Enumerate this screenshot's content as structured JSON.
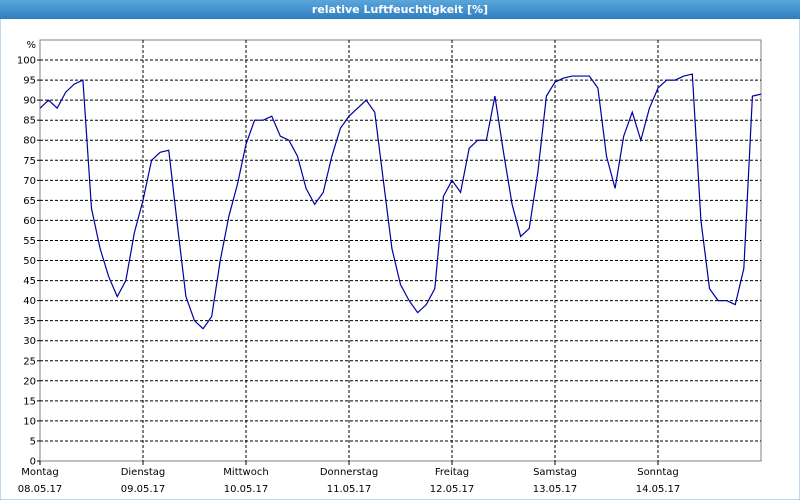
{
  "chart_data": {
    "type": "line",
    "title": "relative Luftfeuchtigkeit [%]",
    "y_label": "%",
    "x": [
      0,
      2,
      4,
      6,
      8,
      10,
      12,
      14,
      16,
      18,
      20,
      22,
      24,
      26,
      28,
      30,
      32,
      34,
      36,
      38,
      40,
      42,
      44,
      46,
      48,
      50,
      52,
      54,
      56,
      58,
      60,
      62,
      64,
      66,
      68,
      70,
      72,
      74,
      76,
      78,
      80,
      82,
      84,
      86,
      88,
      90,
      92,
      94,
      96,
      98,
      100,
      102,
      104,
      106,
      108,
      110,
      112,
      114,
      116,
      118,
      120,
      122,
      124,
      126,
      128,
      130,
      132,
      134,
      136,
      138,
      140,
      142,
      144,
      146,
      148,
      150,
      152,
      154,
      156,
      158,
      160,
      162,
      164,
      166,
      168
    ],
    "series": [
      {
        "name": "relative Luftfeuchtigkeit",
        "color": "#0000a0",
        "values": [
          88,
          90,
          88,
          92,
          94,
          95,
          63,
          53,
          46,
          41,
          45,
          57,
          65,
          75,
          77,
          77.5,
          59,
          41,
          35,
          33,
          36,
          50,
          61,
          69,
          79,
          85,
          85,
          86,
          81,
          80,
          76,
          68,
          64,
          67,
          76,
          83,
          86,
          88,
          90,
          87,
          70,
          53,
          44,
          40,
          37,
          39,
          43,
          66,
          70,
          67,
          78,
          80,
          80,
          91,
          77,
          64,
          56,
          58,
          72,
          91,
          94.5,
          95.5,
          96,
          96,
          96,
          93,
          76,
          68,
          81,
          87,
          80,
          88,
          93,
          95,
          95,
          96,
          96.5,
          60,
          43,
          40,
          40,
          39,
          48,
          91,
          91.5
        ]
      }
    ],
    "xlim": [
      0,
      168
    ],
    "xticks": [
      {
        "value": 0,
        "label": "Montag",
        "date": "08.05.17"
      },
      {
        "value": 24,
        "label": "Dienstag",
        "date": "09.05.17"
      },
      {
        "value": 48,
        "label": "Mittwoch",
        "date": "10.05.17"
      },
      {
        "value": 72,
        "label": "Donnerstag",
        "date": "11.05.17"
      },
      {
        "value": 96,
        "label": "Freitag",
        "date": "12.05.17"
      },
      {
        "value": 120,
        "label": "Samstag",
        "date": "13.05.17"
      },
      {
        "value": 144,
        "label": "Sonntag",
        "date": "14.05.17"
      }
    ],
    "ylim": [
      0,
      105
    ],
    "yticks": [
      0,
      5,
      10,
      15,
      20,
      25,
      30,
      35,
      40,
      45,
      50,
      55,
      60,
      65,
      70,
      75,
      80,
      85,
      90,
      95,
      100
    ],
    "grid": true
  }
}
